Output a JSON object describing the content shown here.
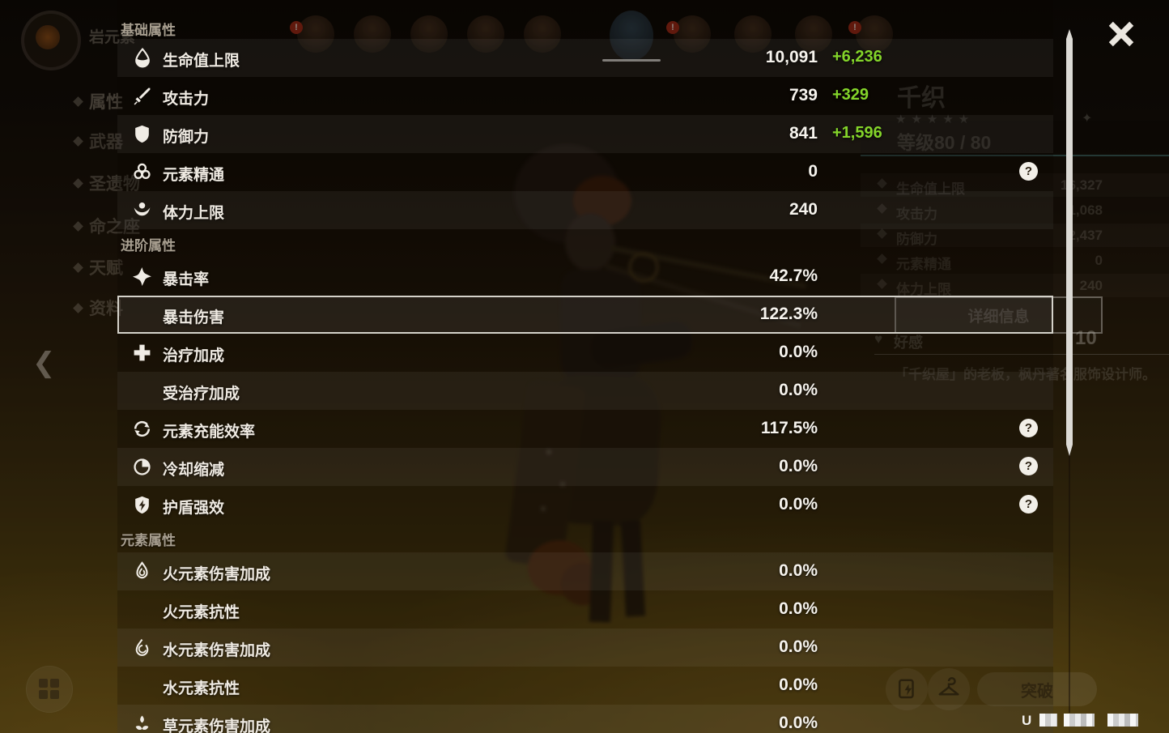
{
  "panel": {
    "sections": [
      {
        "label": "基础属性",
        "rows": [
          {
            "icon": "hp",
            "label": "生命值上限",
            "value": "10,091",
            "bonus": "+6,236",
            "help": false,
            "striped": true,
            "selected": false
          },
          {
            "icon": "atk",
            "label": "攻击力",
            "value": "739",
            "bonus": "+329",
            "help": false,
            "striped": false,
            "selected": false
          },
          {
            "icon": "def",
            "label": "防御力",
            "value": "841",
            "bonus": "+1,596",
            "help": false,
            "striped": true,
            "selected": false
          },
          {
            "icon": "elemental-mastery",
            "label": "元素精通",
            "value": "0",
            "bonus": "",
            "help": true,
            "striped": false,
            "selected": false
          },
          {
            "icon": "stamina",
            "label": "体力上限",
            "value": "240",
            "bonus": "",
            "help": false,
            "striped": true,
            "selected": false
          }
        ]
      },
      {
        "label": "进阶属性",
        "rows": [
          {
            "icon": "crit-rate",
            "label": "暴击率",
            "value": "42.7%",
            "bonus": "",
            "help": false,
            "striped": false,
            "selected": false
          },
          {
            "icon": "",
            "label": "暴击伤害",
            "value": "122.3%",
            "bonus": "",
            "help": false,
            "striped": true,
            "selected": true
          },
          {
            "icon": "healing",
            "label": "治疗加成",
            "value": "0.0%",
            "bonus": "",
            "help": false,
            "striped": false,
            "selected": false
          },
          {
            "icon": "",
            "label": "受治疗加成",
            "value": "0.0%",
            "bonus": "",
            "help": false,
            "striped": true,
            "selected": false
          },
          {
            "icon": "energy-recharge",
            "label": "元素充能效率",
            "value": "117.5%",
            "bonus": "",
            "help": true,
            "striped": false,
            "selected": false
          },
          {
            "icon": "cooldown",
            "label": "冷却缩减",
            "value": "0.0%",
            "bonus": "",
            "help": true,
            "striped": true,
            "selected": false
          },
          {
            "icon": "shield-strength",
            "label": "护盾强效",
            "value": "0.0%",
            "bonus": "",
            "help": true,
            "striped": false,
            "selected": false
          }
        ]
      },
      {
        "label": "元素属性",
        "rows": [
          {
            "icon": "pyro",
            "label": "火元素伤害加成",
            "value": "0.0%",
            "bonus": "",
            "help": false,
            "striped": true,
            "selected": false
          },
          {
            "icon": "",
            "label": "火元素抗性",
            "value": "0.0%",
            "bonus": "",
            "help": false,
            "striped": false,
            "selected": false
          },
          {
            "icon": "hydro",
            "label": "水元素伤害加成",
            "value": "0.0%",
            "bonus": "",
            "help": false,
            "striped": true,
            "selected": false
          },
          {
            "icon": "",
            "label": "水元素抗性",
            "value": "0.0%",
            "bonus": "",
            "help": false,
            "striped": false,
            "selected": false
          },
          {
            "icon": "dendro",
            "label": "草元素伤害加成",
            "value": "0.0%",
            "bonus": "",
            "help": false,
            "striped": true,
            "selected": false
          }
        ]
      }
    ],
    "help_glyph": "?"
  },
  "background": {
    "element_label": "岩元素",
    "nav_items": [
      "属性",
      "武器",
      "圣遗物",
      "命之座",
      "天赋",
      "资料"
    ],
    "back_glyph": "❮",
    "party_avatars": [
      {
        "selected": false,
        "badge": true
      },
      {
        "selected": false,
        "badge": false
      },
      {
        "selected": false,
        "badge": false
      },
      {
        "selected": false,
        "badge": false
      },
      {
        "selected": false,
        "badge": false
      },
      {
        "selected": true,
        "badge": false
      },
      {
        "selected": false,
        "badge": true
      },
      {
        "selected": false,
        "badge": false
      },
      {
        "selected": false,
        "badge": false
      },
      {
        "selected": false,
        "badge": true
      }
    ],
    "badge_glyph": "!",
    "character": {
      "name": "千织",
      "stars": "★★★★★",
      "level_label": "等级80 / 80",
      "stats": [
        {
          "label": "生命值上限",
          "value": "16,327"
        },
        {
          "label": "攻击力",
          "value": "1,068"
        },
        {
          "label": "防御力",
          "value": "2,437"
        },
        {
          "label": "元素精通",
          "value": "0"
        },
        {
          "label": "体力上限",
          "value": "240"
        }
      ],
      "details_button": "详细信息",
      "friendship_label": "好感",
      "friendship_heart": "♥",
      "friendship_level": "10",
      "corner_glyph": "✦",
      "description": "「千织屋」的老板，枫丹著名服饰设计师。"
    },
    "ascend_button": "突破",
    "uid_prefix": "U"
  },
  "colors": {
    "bonus_green": "#84d52a",
    "highlight_border": "#d5d2ca"
  }
}
